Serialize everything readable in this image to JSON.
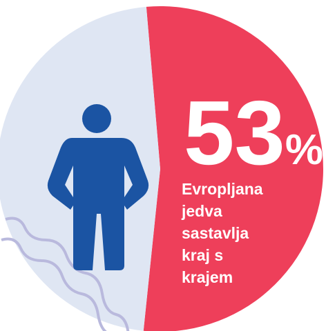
{
  "chart_data": {
    "type": "pie",
    "values": [
      53,
      47
    ],
    "value_labels": [
      "53%",
      null
    ],
    "colors": [
      "#ee3f5a",
      "#dfe6f3"
    ],
    "annotation": [
      "Evropljana",
      "jedva",
      "sastavlja",
      "kraj s",
      "krajem"
    ]
  }
}
